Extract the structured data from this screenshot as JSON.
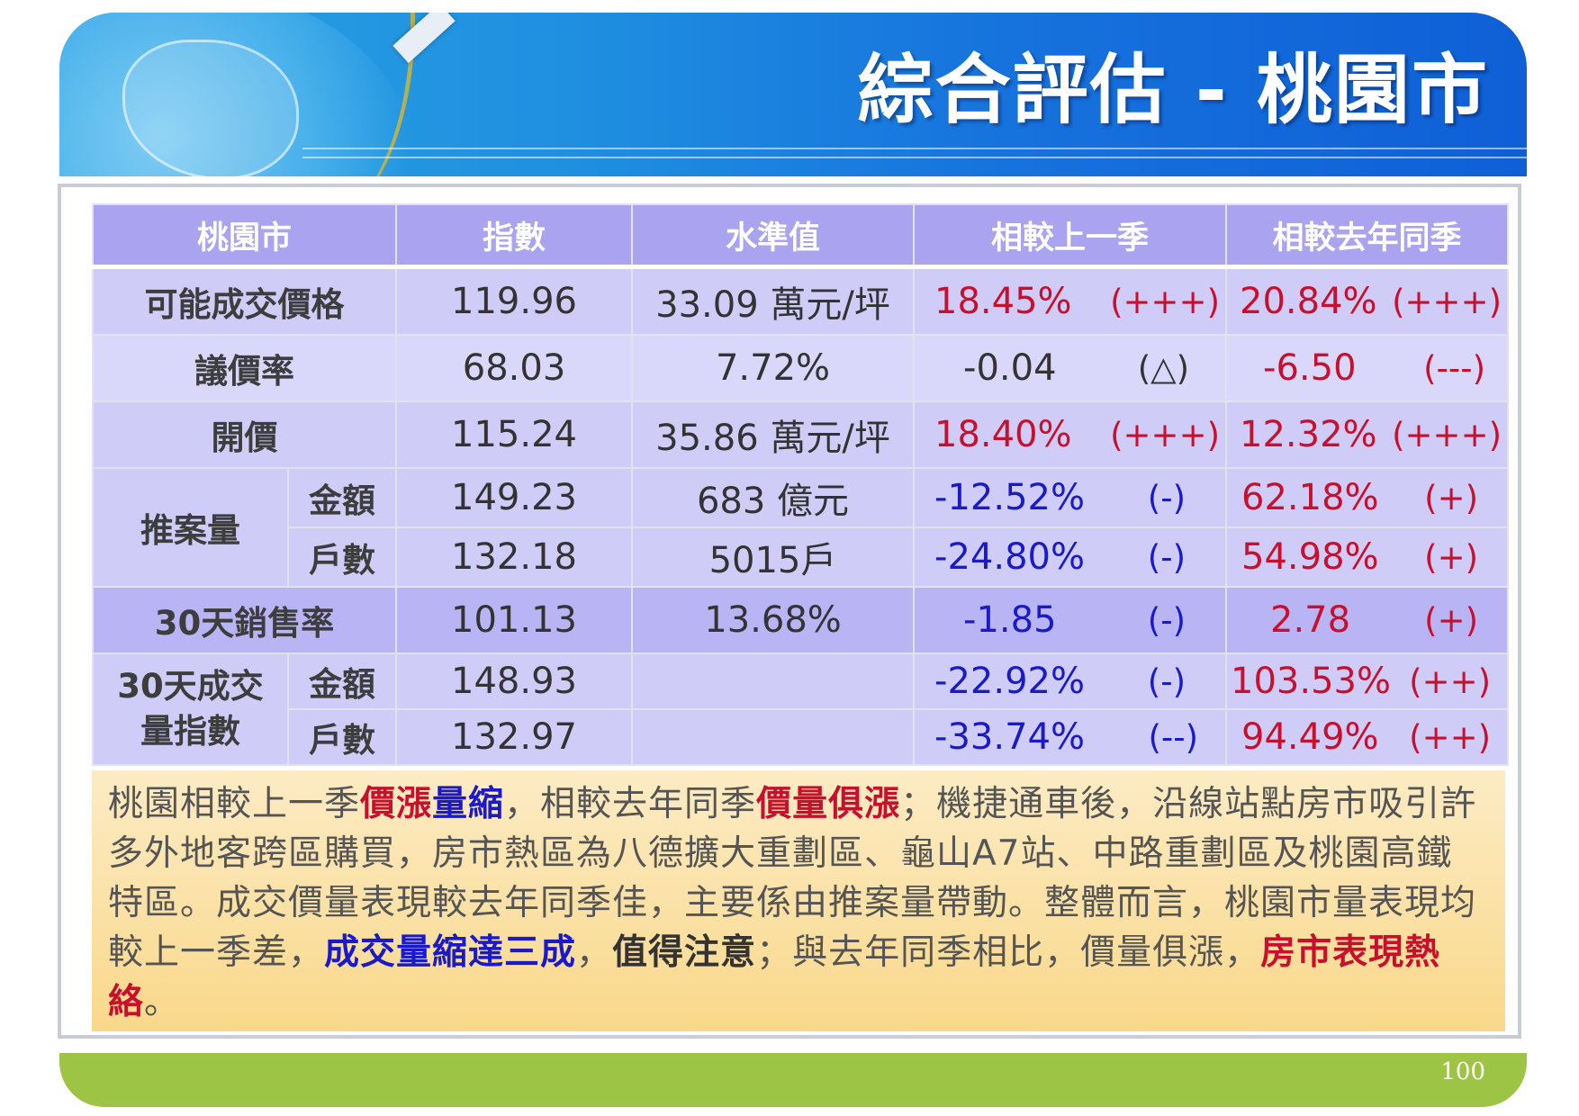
{
  "header": {
    "title": "綜合評估 - 桃園市"
  },
  "table": {
    "headers": [
      "桃園市",
      "指數",
      "水準值",
      "相較上一季",
      "相較去年同季"
    ],
    "rows": [
      {
        "label": "可能成交價格",
        "index": "119.96",
        "level": "33.09 萬元/坪",
        "qoq": "18.45%",
        "qoq_sig": "(+++)",
        "yoy": "20.84%",
        "yoy_sig": "(+++)"
      },
      {
        "label": "議價率",
        "index": "68.03",
        "level": "7.72%",
        "qoq": "-0.04",
        "qoq_sig": "(△)",
        "yoy": "-6.50",
        "yoy_sig": "(---)"
      },
      {
        "label": "開價",
        "index": "115.24",
        "level": "35.86 萬元/坪",
        "qoq": "18.40%",
        "qoq_sig": "(+++)",
        "yoy": "12.32%",
        "yoy_sig": "(+++)"
      },
      {
        "group": "推案量",
        "sub": "金額",
        "index": "149.23",
        "level": "683 億元",
        "qoq": "-12.52%",
        "qoq_sig": "(-)",
        "yoy": "62.18%",
        "yoy_sig": "(+)"
      },
      {
        "sub": "戶數",
        "index": "132.18",
        "level": "5015戶",
        "qoq": "-24.80%",
        "qoq_sig": "(-)",
        "yoy": "54.98%",
        "yoy_sig": "(+)"
      },
      {
        "label": "30天銷售率",
        "index": "101.13",
        "level": "13.68%",
        "qoq": "-1.85",
        "qoq_sig": "(-)",
        "yoy": "2.78",
        "yoy_sig": "(+)"
      },
      {
        "group": "30天成交量指數",
        "sub": "金額",
        "index": "148.93",
        "level": "",
        "qoq": "-22.92%",
        "qoq_sig": "(-)",
        "yoy": "103.53%",
        "yoy_sig": "(++)"
      },
      {
        "sub": "戶數",
        "index": "132.97",
        "level": "",
        "qoq": "-33.74%",
        "qoq_sig": "(--)",
        "yoy": "94.49%",
        "yoy_sig": "(++)"
      }
    ],
    "group_30day_line1": "30天成交",
    "group_30day_line2": "量指數"
  },
  "summary": {
    "s1": "桃園相較上一季",
    "s2": "價漲",
    "s3": "量縮",
    "s4": "，相較去年同季",
    "s5": "價量俱漲",
    "s6": "；機捷通車後，沿線站點房市吸引許多外地客跨區購買，房市熱區為八德擴大重劃區、龜山A7站、中路重劃區及桃園高鐵特區。成交價量表現較去年同季佳，主要係由推案量帶動。整體而言，桃園市量表現均較上一季差，",
    "s7": "成交量縮達三成",
    "s8": "，",
    "s9": "值得注意",
    "s10": "；與去年同季相比，價量俱漲，",
    "s11": "房市表現熱絡",
    "s12": "。"
  },
  "footer": {
    "page_number": "100"
  },
  "colors": {
    "positive": "#c8102e",
    "negative": "#1a1ac8",
    "header_bg": "#a9a3f0",
    "footer_bg": "#9dc444",
    "banner": "#1672dd"
  }
}
